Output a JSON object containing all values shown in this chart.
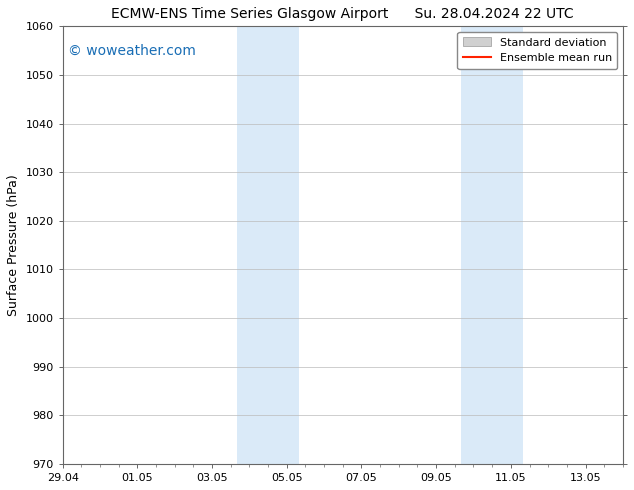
{
  "title_left": "ECMW-ENS Time Series Glasgow Airport",
  "title_right": "Su. 28.04.2024 22 UTC",
  "ylabel": "Surface Pressure (hPa)",
  "ylim": [
    970,
    1060
  ],
  "yticks": [
    970,
    980,
    990,
    1000,
    1010,
    1020,
    1030,
    1040,
    1050,
    1060
  ],
  "xtick_labels": [
    "29.04",
    "01.05",
    "03.05",
    "05.05",
    "07.05",
    "09.05",
    "11.05",
    "13.05"
  ],
  "xtick_positions": [
    0,
    2,
    4,
    6,
    8,
    10,
    12,
    14
  ],
  "xlim": [
    0,
    15
  ],
  "shaded_bands": [
    {
      "x_start": 4.67,
      "x_end": 6.33
    },
    {
      "x_start": 10.67,
      "x_end": 12.33
    }
  ],
  "shaded_color": "#daeaf8",
  "watermark_text": "© woweather.com",
  "watermark_color": "#1a6eb5",
  "legend_std_label": "Standard deviation",
  "legend_mean_label": "Ensemble mean run",
  "legend_std_color": "#d0d0d0",
  "legend_std_edge": "#999999",
  "legend_mean_color": "#ff2200",
  "bg_color": "#ffffff",
  "spine_color": "#666666",
  "tick_color": "#333333",
  "axis_label_fontsize": 9,
  "title_fontsize": 10,
  "tick_fontsize": 8,
  "watermark_fontsize": 10,
  "legend_fontsize": 8
}
